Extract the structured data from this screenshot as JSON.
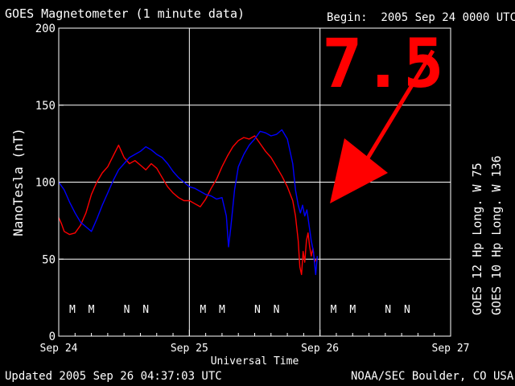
{
  "header": {
    "title": "GOES Magnetometer (1 minute data)",
    "begin": "Begin:  2005 Sep 24 0000 UTC"
  },
  "footer": {
    "updated": "Updated 2005 Sep 26 04:37:03 UTC",
    "source": "NOAA/SEC Boulder, CO USA"
  },
  "annotation": {
    "text": "7.5",
    "color": "#ff0000"
  },
  "colors": {
    "background": "#000000",
    "grid": "#ffffff",
    "goes12": "#ff0000",
    "goes10": "#0000ff"
  },
  "chart_data": {
    "type": "line",
    "ylabel": "NanoTesla (nT)",
    "xlabel": "Universal Time",
    "ylim": [
      0,
      200
    ],
    "yticks": [
      0,
      50,
      100,
      150,
      200
    ],
    "xlim_hours": [
      0,
      72
    ],
    "xticks": [
      "Sep 24",
      "Sep 25",
      "Sep 26",
      "Sep 27"
    ],
    "grid": true,
    "legend_position": "right-vertical",
    "series": [
      {
        "name": "GOES 12 Hp  Long. W 75",
        "color": "#ff0000",
        "points": [
          [
            0,
            77
          ],
          [
            0.5,
            73
          ],
          [
            1,
            68
          ],
          [
            2,
            66
          ],
          [
            3,
            67
          ],
          [
            4,
            72
          ],
          [
            5,
            80
          ],
          [
            6,
            92
          ],
          [
            7,
            100
          ],
          [
            8,
            106
          ],
          [
            9,
            110
          ],
          [
            10,
            117
          ],
          [
            11,
            124
          ],
          [
            11.5,
            120
          ],
          [
            12,
            116
          ],
          [
            13,
            112
          ],
          [
            14,
            114
          ],
          [
            15,
            111
          ],
          [
            16,
            108
          ],
          [
            17,
            112
          ],
          [
            18,
            109
          ],
          [
            19,
            103
          ],
          [
            20,
            97
          ],
          [
            21,
            93
          ],
          [
            22,
            90
          ],
          [
            23,
            88
          ],
          [
            24,
            88
          ],
          [
            25,
            86
          ],
          [
            26,
            84
          ],
          [
            27,
            89
          ],
          [
            28,
            96
          ],
          [
            29,
            102
          ],
          [
            30,
            110
          ],
          [
            31,
            117
          ],
          [
            32,
            123
          ],
          [
            33,
            127
          ],
          [
            34,
            129
          ],
          [
            35,
            128
          ],
          [
            36,
            130
          ],
          [
            37,
            125
          ],
          [
            38,
            120
          ],
          [
            39,
            116
          ],
          [
            40,
            110
          ],
          [
            41,
            104
          ],
          [
            42,
            97
          ],
          [
            43,
            88
          ],
          [
            43.5,
            78
          ],
          [
            44,
            62
          ],
          [
            44.3,
            45
          ],
          [
            44.6,
            40
          ],
          [
            44.9,
            55
          ],
          [
            45.2,
            48
          ],
          [
            45.5,
            62
          ],
          [
            45.8,
            67
          ],
          [
            46.1,
            58
          ],
          [
            46.4,
            52
          ],
          [
            46.7,
            57
          ],
          [
            47,
            48
          ],
          [
            47.3,
            50
          ]
        ]
      },
      {
        "name": "GOES 10 Hp  Long. W 136",
        "color": "#0000ff",
        "points": [
          [
            0,
            100
          ],
          [
            1,
            95
          ],
          [
            2,
            87
          ],
          [
            3,
            80
          ],
          [
            4,
            74
          ],
          [
            5,
            71
          ],
          [
            6,
            68
          ],
          [
            7,
            76
          ],
          [
            8,
            85
          ],
          [
            9,
            93
          ],
          [
            10,
            101
          ],
          [
            11,
            108
          ],
          [
            12,
            112
          ],
          [
            13,
            116
          ],
          [
            14,
            118
          ],
          [
            15,
            120
          ],
          [
            16,
            123
          ],
          [
            17,
            121
          ],
          [
            18,
            118
          ],
          [
            19,
            116
          ],
          [
            20,
            112
          ],
          [
            21,
            107
          ],
          [
            22,
            103
          ],
          [
            23,
            100
          ],
          [
            24,
            97
          ],
          [
            25,
            96
          ],
          [
            26,
            94
          ],
          [
            27,
            92
          ],
          [
            28,
            91
          ],
          [
            29,
            89
          ],
          [
            30,
            90
          ],
          [
            30.8,
            78
          ],
          [
            31.2,
            58
          ],
          [
            31.6,
            70
          ],
          [
            32.3,
            95
          ],
          [
            33,
            110
          ],
          [
            34,
            118
          ],
          [
            35,
            124
          ],
          [
            36,
            128
          ],
          [
            37,
            133
          ],
          [
            38,
            132
          ],
          [
            39,
            130
          ],
          [
            40,
            131
          ],
          [
            41,
            134
          ],
          [
            42,
            128
          ],
          [
            43,
            112
          ],
          [
            43.5,
            95
          ],
          [
            44,
            85
          ],
          [
            44.4,
            80
          ],
          [
            44.8,
            85
          ],
          [
            45.2,
            78
          ],
          [
            45.6,
            82
          ],
          [
            46,
            72
          ],
          [
            46.4,
            62
          ],
          [
            46.8,
            55
          ],
          [
            47.2,
            40
          ],
          [
            47.5,
            52
          ]
        ]
      }
    ],
    "markers": [
      {
        "label": "M",
        "hour": 2.5,
        "color": "#ff0000"
      },
      {
        "label": "M",
        "hour": 6.0,
        "color": "#0000ff"
      },
      {
        "label": "N",
        "hour": 12.5,
        "color": "#ff0000"
      },
      {
        "label": "N",
        "hour": 16.0,
        "color": "#0000ff"
      },
      {
        "label": "M",
        "hour": 26.5,
        "color": "#ff0000"
      },
      {
        "label": "M",
        "hour": 30.0,
        "color": "#0000ff"
      },
      {
        "label": "N",
        "hour": 36.5,
        "color": "#ff0000"
      },
      {
        "label": "N",
        "hour": 40.0,
        "color": "#0000ff"
      },
      {
        "label": "M",
        "hour": 50.5,
        "color": "#ff0000"
      },
      {
        "label": "M",
        "hour": 54.0,
        "color": "#0000ff"
      },
      {
        "label": "N",
        "hour": 60.5,
        "color": "#ff0000"
      },
      {
        "label": "N",
        "hour": 64.0,
        "color": "#0000ff"
      }
    ]
  }
}
